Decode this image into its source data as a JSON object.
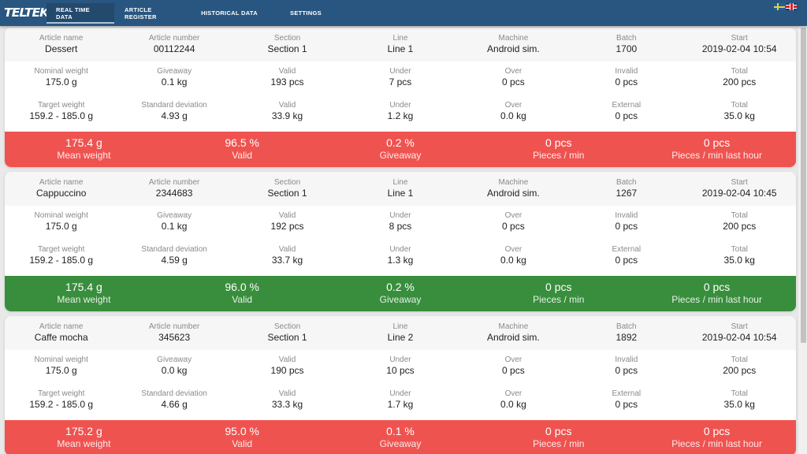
{
  "app": {
    "logo": "TELTEK"
  },
  "nav": {
    "tabs": [
      {
        "label": "REAL TIME DATA",
        "active": true
      },
      {
        "label": "ARTICLE REGISTER",
        "active": false
      },
      {
        "label": "HISTORICAL DATA",
        "active": false
      },
      {
        "label": "SETTINGS",
        "active": false
      }
    ],
    "languages": [
      {
        "code": "sv",
        "icon": "swedish-flag-icon"
      },
      {
        "code": "en",
        "icon": "uk-flag-icon"
      }
    ]
  },
  "colors": {
    "header": "#285680",
    "status_bad": "#ef5350",
    "status_good": "#388e3c"
  },
  "cards": [
    {
      "status": "bad",
      "head": [
        {
          "label": "Article name",
          "value": "Dessert"
        },
        {
          "label": "Article number",
          "value": "00112244"
        },
        {
          "label": "Section",
          "value": "Section 1"
        },
        {
          "label": "Line",
          "value": "Line 1"
        },
        {
          "label": "Machine",
          "value": "Android sim."
        },
        {
          "label": "Batch",
          "value": "1700"
        },
        {
          "label": "Start",
          "value": "2019-02-04 10:54"
        }
      ],
      "row1": [
        {
          "label": "Nominal weight",
          "value": "175.0 g"
        },
        {
          "label": "Giveaway",
          "value": "0.1 kg"
        },
        {
          "label": "Valid",
          "value": "193 pcs"
        },
        {
          "label": "Under",
          "value": "7 pcs"
        },
        {
          "label": "Over",
          "value": "0 pcs"
        },
        {
          "label": "Invalid",
          "value": "0 pcs"
        },
        {
          "label": "Total",
          "value": "200 pcs"
        }
      ],
      "row2": [
        {
          "label": "Target weight",
          "value": "159.2 - 185.0 g"
        },
        {
          "label": "Standard deviation",
          "value": "4.93 g"
        },
        {
          "label": "Valid",
          "value": "33.9 kg"
        },
        {
          "label": "Under",
          "value": "1.2 kg"
        },
        {
          "label": "Over",
          "value": "0.0 kg"
        },
        {
          "label": "External",
          "value": "0 pcs"
        },
        {
          "label": "Total",
          "value": "35.0 kg"
        }
      ],
      "summary": [
        {
          "value": "175.4 g",
          "label": "Mean weight"
        },
        {
          "value": "96.5 %",
          "label": "Valid"
        },
        {
          "value": "0.2 %",
          "label": "Giveaway"
        },
        {
          "value": "0 pcs",
          "label": "Pieces / min"
        },
        {
          "value": "0 pcs",
          "label": "Pieces / min last hour"
        }
      ]
    },
    {
      "status": "good",
      "head": [
        {
          "label": "Article name",
          "value": "Cappuccino"
        },
        {
          "label": "Article number",
          "value": "2344683"
        },
        {
          "label": "Section",
          "value": "Section 1"
        },
        {
          "label": "Line",
          "value": "Line 1"
        },
        {
          "label": "Machine",
          "value": "Android sim."
        },
        {
          "label": "Batch",
          "value": "1267"
        },
        {
          "label": "Start",
          "value": "2019-02-04 10:45"
        }
      ],
      "row1": [
        {
          "label": "Nominal weight",
          "value": "175.0 g"
        },
        {
          "label": "Giveaway",
          "value": "0.1 kg"
        },
        {
          "label": "Valid",
          "value": "192 pcs"
        },
        {
          "label": "Under",
          "value": "8 pcs"
        },
        {
          "label": "Over",
          "value": "0 pcs"
        },
        {
          "label": "Invalid",
          "value": "0 pcs"
        },
        {
          "label": "Total",
          "value": "200 pcs"
        }
      ],
      "row2": [
        {
          "label": "Target weight",
          "value": "159.2 - 185.0 g"
        },
        {
          "label": "Standard deviation",
          "value": "4.59 g"
        },
        {
          "label": "Valid",
          "value": "33.7 kg"
        },
        {
          "label": "Under",
          "value": "1.3 kg"
        },
        {
          "label": "Over",
          "value": "0.0 kg"
        },
        {
          "label": "External",
          "value": "0 pcs"
        },
        {
          "label": "Total",
          "value": "35.0 kg"
        }
      ],
      "summary": [
        {
          "value": "175.4 g",
          "label": "Mean weight"
        },
        {
          "value": "96.0 %",
          "label": "Valid"
        },
        {
          "value": "0.2 %",
          "label": "Giveaway"
        },
        {
          "value": "0 pcs",
          "label": "Pieces / min"
        },
        {
          "value": "0 pcs",
          "label": "Pieces / min last hour"
        }
      ]
    },
    {
      "status": "bad",
      "head": [
        {
          "label": "Article name",
          "value": "Caffe mocha"
        },
        {
          "label": "Article number",
          "value": "345623"
        },
        {
          "label": "Section",
          "value": "Section 1"
        },
        {
          "label": "Line",
          "value": "Line 2"
        },
        {
          "label": "Machine",
          "value": "Android sim."
        },
        {
          "label": "Batch",
          "value": "1892"
        },
        {
          "label": "Start",
          "value": "2019-02-04 10:54"
        }
      ],
      "row1": [
        {
          "label": "Nominal weight",
          "value": "175.0 g"
        },
        {
          "label": "Giveaway",
          "value": "0.0 kg"
        },
        {
          "label": "Valid",
          "value": "190 pcs"
        },
        {
          "label": "Under",
          "value": "10 pcs"
        },
        {
          "label": "Over",
          "value": "0 pcs"
        },
        {
          "label": "Invalid",
          "value": "0 pcs"
        },
        {
          "label": "Total",
          "value": "200 pcs"
        }
      ],
      "row2": [
        {
          "label": "Target weight",
          "value": "159.2 - 185.0 g"
        },
        {
          "label": "Standard deviation",
          "value": "4.66 g"
        },
        {
          "label": "Valid",
          "value": "33.3 kg"
        },
        {
          "label": "Under",
          "value": "1.7 kg"
        },
        {
          "label": "Over",
          "value": "0.0 kg"
        },
        {
          "label": "External",
          "value": "0 pcs"
        },
        {
          "label": "Total",
          "value": "35.0 kg"
        }
      ],
      "summary": [
        {
          "value": "175.2 g",
          "label": "Mean weight"
        },
        {
          "value": "95.0 %",
          "label": "Valid"
        },
        {
          "value": "0.1 %",
          "label": "Giveaway"
        },
        {
          "value": "0 pcs",
          "label": "Pieces / min"
        },
        {
          "value": "0 pcs",
          "label": "Pieces / min last hour"
        }
      ]
    }
  ]
}
